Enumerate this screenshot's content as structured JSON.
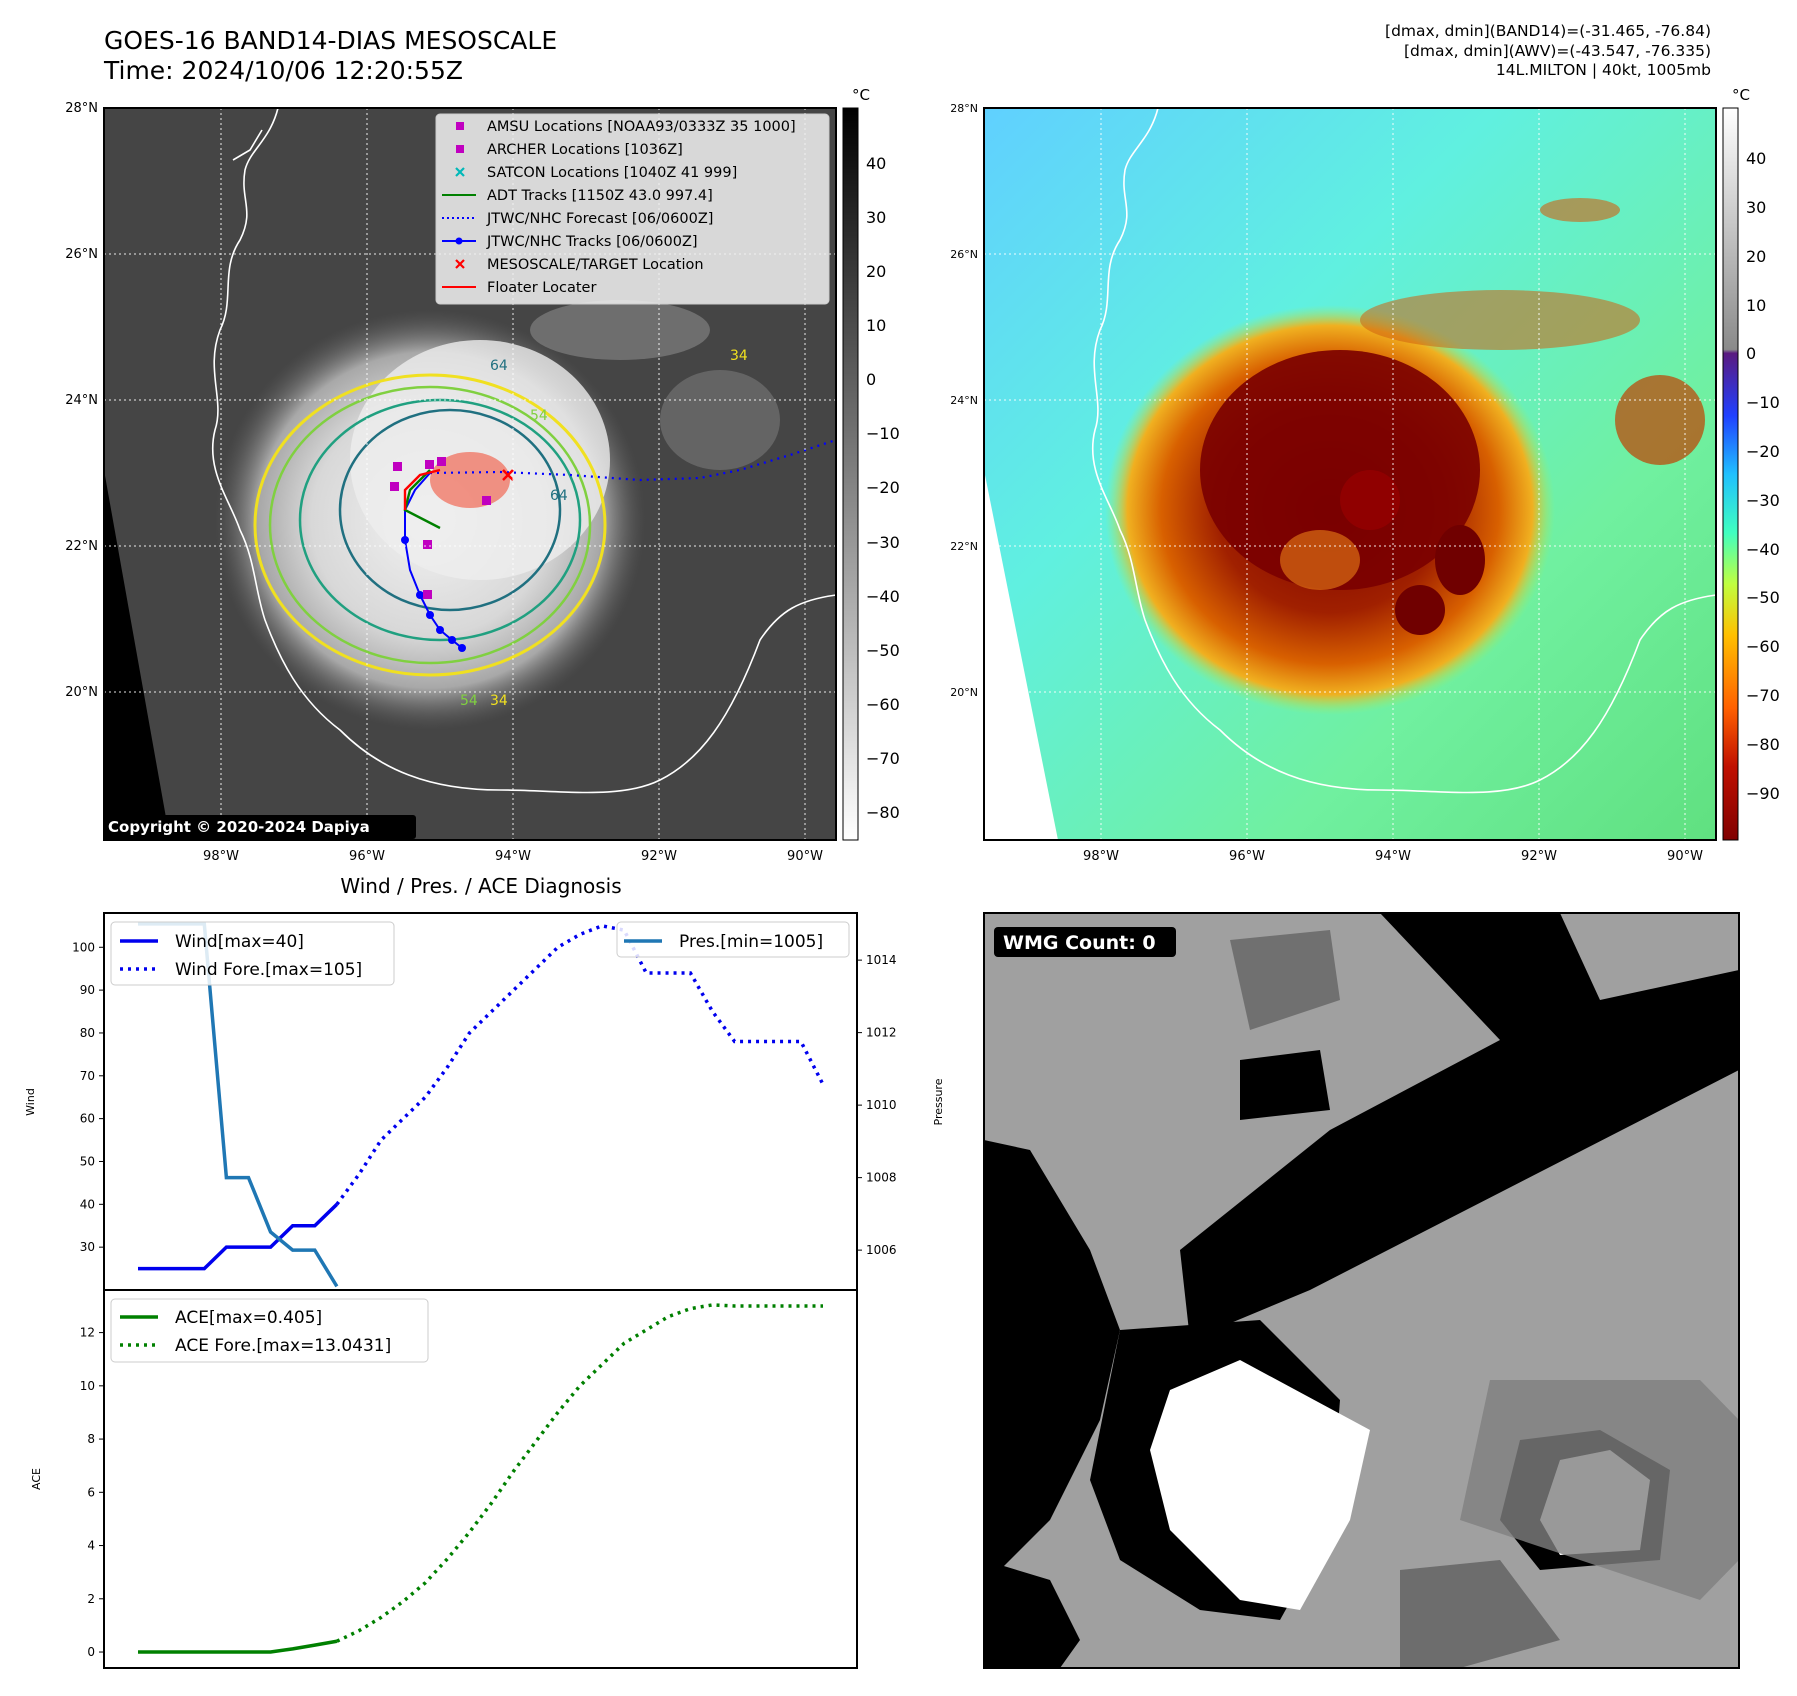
{
  "header": {
    "title_line1": "GOES-16 BAND14-DIAS MESOSCALE",
    "title_line2": "Time: 2024/10/06 12:20:55Z",
    "stats_line1": "[dmax, dmin](BAND14)=(-31.465, -76.84)",
    "stats_line2": "[dmax, dmin](AWV)=(-43.547, -76.335)",
    "stats_line3": "14L.MILTON | 40kt, 1005mb"
  },
  "map_common": {
    "lat_labels": [
      "28°N",
      "26°N",
      "24°N",
      "22°N",
      "20°N"
    ],
    "lon_labels": [
      "98°W",
      "96°W",
      "94°W",
      "92°W",
      "90°W"
    ]
  },
  "ir_panel": {
    "colorbar_unit": "°C",
    "colorbar_ticks": [
      "40",
      "30",
      "20",
      "10",
      "0",
      "−10",
      "−20",
      "−30",
      "−40",
      "−50",
      "−60",
      "−70",
      "−80"
    ],
    "copyright": "Copyright © 2020-2024 Dapiya",
    "contour_labels": [
      "64",
      "54",
      "34",
      "64",
      "54",
      "34"
    ],
    "legend": [
      {
        "label": "AMSU Locations [NOAA93/0333Z 35 1000]",
        "color": "#c000c0",
        "marker": "square"
      },
      {
        "label": "ARCHER Locations [1036Z]",
        "color": "#c000c0",
        "marker": "square"
      },
      {
        "label": "SATCON Locations [1040Z 41 999]",
        "color": "#00b8b8",
        "marker": "x"
      },
      {
        "label": "ADT Tracks [1150Z 43.0 997.4]",
        "color": "#008000",
        "marker": "line"
      },
      {
        "label": "JTWC/NHC Forecast [06/0600Z]",
        "color": "#0000ff",
        "marker": "dotted"
      },
      {
        "label": "JTWC/NHC Tracks [06/0600Z]",
        "color": "#0000ff",
        "marker": "line-dot"
      },
      {
        "label": "MESOSCALE/TARGET Location",
        "color": "#ff0000",
        "marker": "x"
      },
      {
        "label": "Floater Locater",
        "color": "#ff0000",
        "marker": "line"
      }
    ]
  },
  "awv_panel": {
    "colorbar_unit": "°C",
    "colorbar_ticks": [
      "40",
      "30",
      "20",
      "10",
      "0",
      "−10",
      "−20",
      "−30",
      "−40",
      "−50",
      "−60",
      "−70",
      "−80",
      "−90"
    ]
  },
  "wmg_panel": {
    "label": "WMG Count: 0"
  },
  "chart_data": [
    {
      "type": "line",
      "title": "Wind / Pres. / ACE Diagnosis",
      "ylabel": "Wind",
      "y2label": "Pressure",
      "ylim": [
        20,
        108
      ],
      "y2lim": [
        1004.9,
        1015.3
      ],
      "yticks": [
        30,
        40,
        50,
        60,
        70,
        80,
        90,
        100
      ],
      "y2ticks": [
        1006,
        1008,
        1010,
        1012,
        1014
      ],
      "x": [
        0,
        1,
        2,
        3,
        4,
        5,
        6,
        7,
        8,
        9,
        10,
        11,
        12,
        13,
        14,
        15,
        16,
        17,
        18,
        19,
        20,
        21,
        22,
        23,
        24,
        25,
        26,
        27,
        28,
        29,
        30,
        31
      ],
      "series": [
        {
          "name": "Wind[max=40]",
          "style": "solid",
          "color": "#0000ee",
          "axis": "left",
          "x": [
            0,
            1,
            2,
            3,
            4,
            5,
            6,
            7,
            8,
            9
          ],
          "values": [
            25,
            25,
            25,
            25,
            30,
            30,
            30,
            35,
            35,
            40
          ]
        },
        {
          "name": "Wind Fore.[max=105]",
          "style": "dotted",
          "color": "#0000ee",
          "axis": "left",
          "x": [
            9,
            10,
            11,
            12,
            13,
            14,
            15,
            16,
            17,
            18,
            19,
            20,
            21,
            22,
            23,
            24,
            25,
            26,
            27,
            28,
            29,
            30,
            31
          ],
          "values": [
            40,
            47,
            55,
            60,
            65,
            72,
            80,
            85,
            90,
            95,
            100,
            103,
            105,
            104,
            94,
            94,
            94,
            85,
            78,
            78,
            78,
            78,
            68
          ]
        },
        {
          "name": "Pres.[min=1005]",
          "style": "solid",
          "color": "#1f77b4",
          "axis": "right",
          "x": [
            0,
            1,
            2,
            3,
            4,
            5,
            6,
            7,
            8,
            9
          ],
          "values": [
            1015,
            1015,
            1015,
            1015,
            1008,
            1008,
            1006.5,
            1006,
            1006,
            1005
          ]
        }
      ],
      "legend_left": [
        "Wind[max=40]",
        "Wind Fore.[max=105]"
      ],
      "legend_right": [
        "Pres.[min=1005]"
      ]
    },
    {
      "type": "line",
      "ylabel": "ACE",
      "ylim": [
        -0.6,
        13.6
      ],
      "yticks": [
        0,
        2,
        4,
        6,
        8,
        10,
        12
      ],
      "series": [
        {
          "name": "ACE[max=0.405]",
          "style": "solid",
          "color": "#008000",
          "x": [
            0,
            1,
            2,
            3,
            4,
            5,
            6,
            7,
            8,
            9
          ],
          "values": [
            0,
            0,
            0,
            0,
            0,
            0,
            0,
            0.12,
            0.26,
            0.405
          ]
        },
        {
          "name": "ACE Fore.[max=13.0431]",
          "style": "dotted",
          "color": "#008000",
          "x": [
            9,
            10,
            11,
            12,
            13,
            14,
            15,
            16,
            17,
            18,
            19,
            20,
            21,
            22,
            23,
            24,
            25,
            26,
            27,
            28,
            29,
            30,
            31
          ],
          "values": [
            0.405,
            0.8,
            1.3,
            1.9,
            2.6,
            3.5,
            4.5,
            5.6,
            6.8,
            7.9,
            9.0,
            10.0,
            10.8,
            11.6,
            12.1,
            12.6,
            12.9,
            13.04,
            13.0,
            13.0,
            13.0,
            13.0,
            13.0
          ]
        }
      ]
    }
  ]
}
